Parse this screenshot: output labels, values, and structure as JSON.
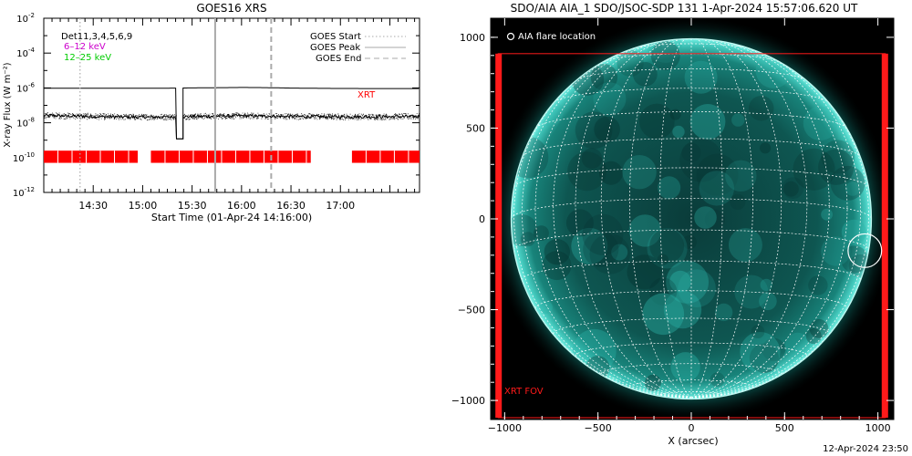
{
  "footer": {
    "timestamp": "12-Apr-2024 23:50"
  },
  "goes": {
    "title": "GOES16 XRS",
    "ylabel": "X-ray Flux (W m⁻²)",
    "xlabel": "Start Time (01-Apr-24 14:16:00)",
    "x_tick_labels": [
      "14:30",
      "15:00",
      "15:30",
      "16:00",
      "16:30",
      "17:00"
    ],
    "x_tick_minutes": [
      30,
      60,
      90,
      120,
      150,
      180
    ],
    "y_tick_labels": [
      {
        "base": "10",
        "exp": "-2"
      },
      {
        "base": "10",
        "exp": "-4"
      },
      {
        "base": "10",
        "exp": "-6"
      },
      {
        "base": "10",
        "exp": "-8"
      },
      {
        "base": "10",
        "exp": "-10"
      },
      {
        "base": "10",
        "exp": "-12"
      }
    ],
    "y_tick_exps": [
      -2,
      -4,
      -6,
      -8,
      -10,
      -12
    ],
    "det_label": "Det11,3,4,5,6,9",
    "energy_labels": [
      {
        "text": "6–12 keV",
        "color": "#cc00cc"
      },
      {
        "text": "12–25 keV",
        "color": "#00cc00"
      }
    ],
    "legend": [
      {
        "label": "GOES Start",
        "style": "dotted"
      },
      {
        "label": "GOES Peak",
        "style": "solid"
      },
      {
        "label": "GOES End",
        "style": "dashed"
      }
    ],
    "xrt_label": "XRT",
    "colors": {
      "data": "#000000",
      "xrt": "#ff0000",
      "marker": "#aaaaaa",
      "rhessi": "#ff0000"
    }
  },
  "chart_data": [
    {
      "type": "line",
      "title": "GOES16 XRS",
      "xlabel": "Start Time (01-Apr-24 14:16:00)",
      "ylabel": "X-ray Flux (W m⁻²)",
      "x_unit": "minutes after 14:16:00",
      "xlim": [
        0,
        228
      ],
      "ylim": [
        1e-12,
        0.01
      ],
      "yscale": "log",
      "series": [
        {
          "name": "",
          "x": [
            0,
            70,
            80,
            90,
            100,
            110,
            120,
            130,
            140,
            150,
            160,
            170,
            180,
            200,
            228
          ],
          "y": [
            9.5e-07,
            9.5e-07,
            9.8e-07,
            1e-06,
            1.02e-06,
            1.04e-06,
            1.06e-06,
            1.05e-06,
            1.02e-06,
            9.8e-07,
            9.6e-07,
            9.4e-07,
            9.3e-07,
            9.2e-07,
            9.2e-07
          ]
        },
        {
          "name": "",
          "x": [
            0,
            20,
            40,
            60,
            80,
            90,
            120,
            150,
            180,
            200,
            228
          ],
          "y": [
            2.6e-08,
            2.4e-08,
            2.2e-08,
            2.1e-08,
            2.2e-08,
            2.3e-08,
            2.5e-08,
            2.3e-08,
            2.2e-08,
            2.2e-08,
            2.3e-08
          ]
        }
      ],
      "gaps": [
        {
          "start": 80.5,
          "end": 84.5
        }
      ],
      "xrt_intervals": [
        [
          0,
          57
        ],
        [
          65,
          162
        ],
        [
          187,
          228
        ]
      ],
      "markers_minutes": {
        "start": 22,
        "peak": 104,
        "end": 138
      }
    },
    {
      "type": "heatmap",
      "title": "SDO/AIA AIA_1 SDO/JSOC-SDP 131  1-Apr-2024 15:57:06.620 UT",
      "xlabel": "X (arcsec)",
      "ylabel": "",
      "xlim": [
        -1075,
        1085
      ],
      "ylim": [
        -1105,
        1105
      ],
      "x_tick_labels": [
        "−1000",
        "−500",
        "0",
        "500",
        "1000"
      ],
      "x_ticks": [
        -1000,
        -500,
        0,
        500,
        1000
      ],
      "y_tick_labels": [
        "1000",
        "500",
        "0",
        "−500",
        "−1000"
      ],
      "y_ticks": [
        1000,
        500,
        0,
        -500,
        -1000
      ],
      "solar_radius_arcsec": 965,
      "flare_location": {
        "x": 930,
        "y": -175,
        "radius": 90
      },
      "xrt_fov": {
        "x": [
          -1035,
          1040
        ],
        "y": [
          -1095,
          910
        ]
      }
    }
  ],
  "aia": {
    "title": "SDO/AIA AIA_1 SDO/JSOC-SDP 131  1-Apr-2024 15:57:06.620 UT",
    "flare_legend": "AIA flare location",
    "xrt_fov_label": "XRT FOV",
    "colors": {
      "disk": "#0f8f85",
      "limb": "#5fe8dc",
      "grid": "#ffffff",
      "fov": "#ff1a1a",
      "bg": "#000000"
    }
  }
}
